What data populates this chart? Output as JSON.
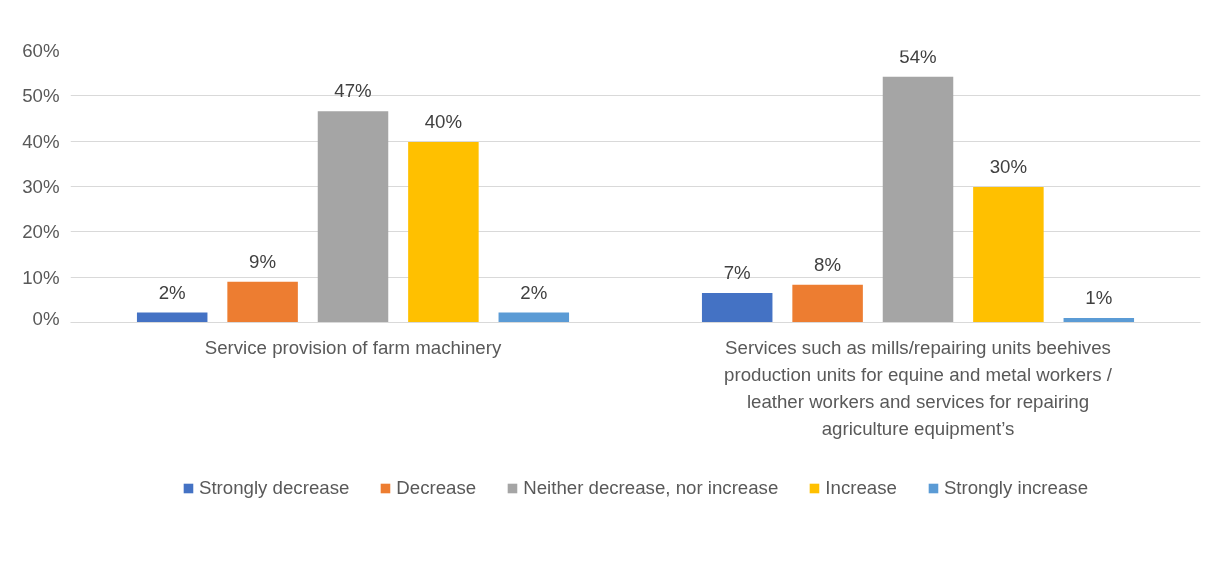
{
  "chart_data": {
    "type": "bar",
    "categories": [
      "Service provision of farm machinery",
      "Services such as mills/repairing units beehives production units for equine and metal workers / leather workers and services for repairing agriculture equipment’s"
    ],
    "series": [
      {
        "name": "Strongly decrease",
        "color": "#4472c4",
        "values": [
          2.2,
          6.5
        ],
        "value_labels": [
          "2%",
          "7%"
        ]
      },
      {
        "name": "Decrease",
        "color": "#ed7d31",
        "values": [
          9.0,
          8.3
        ],
        "value_labels": [
          "9%",
          "8%"
        ]
      },
      {
        "name": "Neither decrease, nor increase",
        "color": "#a5a5a5",
        "values": [
          46.6,
          54.2
        ],
        "value_labels": [
          "47%",
          "54%"
        ]
      },
      {
        "name": "Increase",
        "color": "#ffc000",
        "values": [
          39.8,
          29.9
        ],
        "value_labels": [
          "40%",
          "30%"
        ]
      },
      {
        "name": "Strongly increase",
        "color": "#5b9bd5",
        "values": [
          2.2,
          1.0
        ],
        "value_labels": [
          "2%",
          "1%"
        ]
      }
    ],
    "ylim": [
      0,
      60
    ],
    "yticks": [
      {
        "value": 0,
        "label": "0%"
      },
      {
        "value": 10,
        "label": "10%"
      },
      {
        "value": 20,
        "label": "20%"
      },
      {
        "value": 30,
        "label": "30%"
      },
      {
        "value": 40,
        "label": "40%"
      },
      {
        "value": 50,
        "label": "50%"
      },
      {
        "value": 60,
        "label": "60%"
      }
    ],
    "grid": "y",
    "legend": "bottom"
  }
}
